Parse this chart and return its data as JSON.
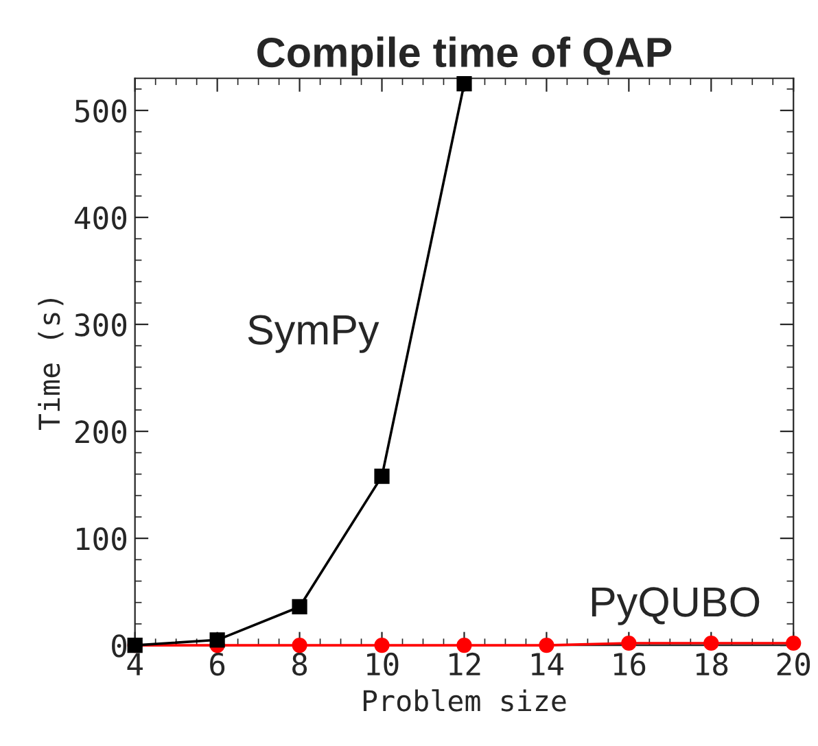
{
  "chart_data": {
    "type": "line",
    "title": "Compile time of QAP",
    "xlabel": "Problem size",
    "ylabel": "Time (s)",
    "x": [
      4,
      6,
      8,
      10,
      12,
      14,
      16,
      18,
      20
    ],
    "series": [
      {
        "name": "SymPy",
        "color": "#000000",
        "marker": "square",
        "values": [
          0,
          5,
          36,
          158,
          525,
          null,
          null,
          null,
          null
        ]
      },
      {
        "name": "PyQUBO",
        "color": "#ff0000",
        "marker": "circle",
        "values": [
          0,
          0,
          0,
          0,
          0,
          0,
          2,
          2,
          2
        ]
      }
    ],
    "xlim": [
      4,
      20
    ],
    "xticks": [
      4,
      6,
      8,
      10,
      12,
      14,
      16,
      18,
      20
    ],
    "ylim": [
      0,
      530
    ],
    "yticks": [
      0,
      100,
      200,
      300,
      400,
      500
    ],
    "grid": false,
    "legend": false,
    "line_style": "solid"
  }
}
